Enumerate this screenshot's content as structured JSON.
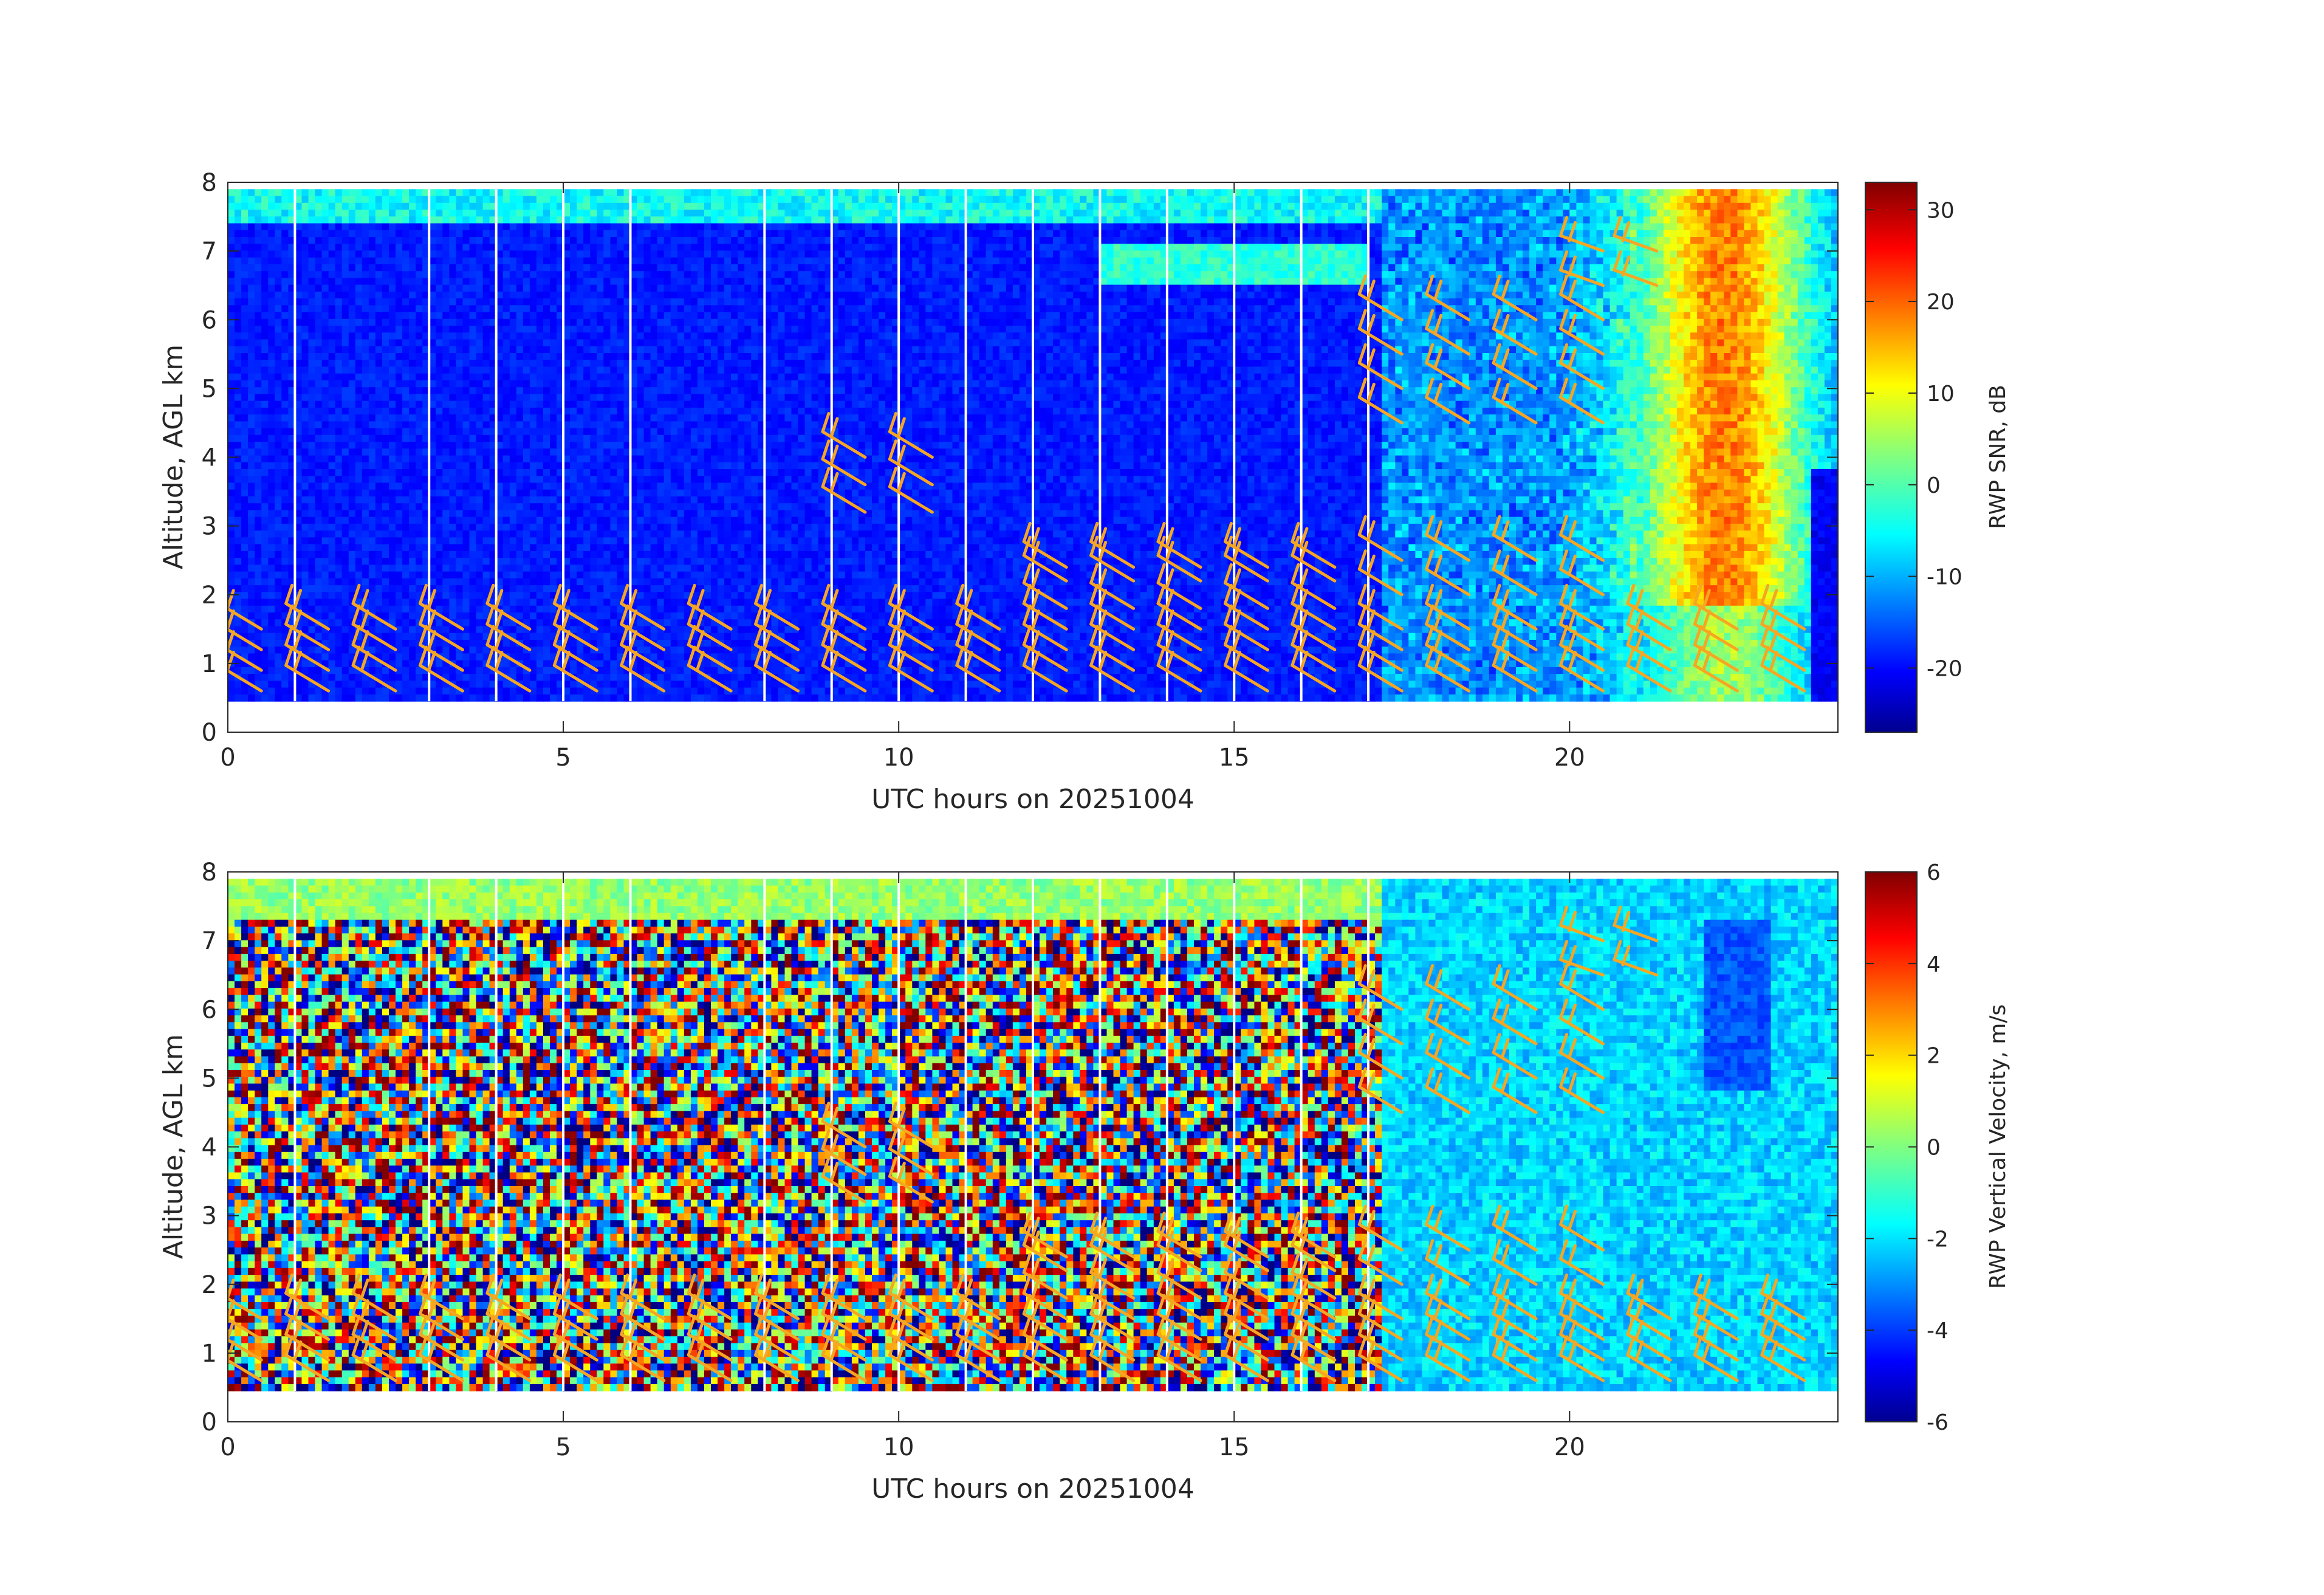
{
  "chart_data": [
    {
      "type": "heatmap",
      "title": "",
      "xlabel": "UTC hours on 20251004",
      "ylabel": "Altitude, AGL km",
      "xlim": [
        0,
        24
      ],
      "ylim": [
        0,
        8
      ],
      "xticks": [
        0,
        5,
        10,
        15,
        20
      ],
      "yticks": [
        0,
        1,
        2,
        3,
        4,
        5,
        6,
        7,
        8
      ],
      "colorbar": {
        "label": "RWP SNR, dB",
        "range": [
          -27,
          33
        ],
        "ticks": [
          -20,
          -10,
          0,
          10,
          20,
          30
        ],
        "colormap": "jet"
      },
      "wind_barb_color": "#f5a623",
      "data_gaps_utc_hours": [
        1,
        3,
        4,
        5,
        6,
        8,
        9,
        10,
        11,
        12,
        13,
        14,
        15,
        16,
        17
      ],
      "features": {
        "boundary_layer_top_km": 0.9,
        "cloud_echo_hours": [
          17.2,
          24.0
        ],
        "max_snr_db": 30
      }
    },
    {
      "type": "heatmap",
      "title": "",
      "xlabel": "UTC hours on 20251004",
      "ylabel": "Altitude, AGL km",
      "xlim": [
        0,
        24
      ],
      "ylim": [
        0,
        8
      ],
      "xticks": [
        0,
        5,
        10,
        15,
        20
      ],
      "yticks": [
        0,
        1,
        2,
        3,
        4,
        5,
        6,
        7,
        8
      ],
      "colorbar": {
        "label": "RWP Vertical Velocity, m/s",
        "range": [
          -6,
          6
        ],
        "ticks": [
          -6,
          -4,
          -2,
          0,
          2,
          4,
          6
        ],
        "colormap": "jet"
      },
      "wind_barb_color": "#f5a623",
      "data_gaps_utc_hours": [
        1,
        3,
        4,
        5,
        6,
        8,
        9,
        10,
        11,
        12,
        13,
        14,
        15,
        16,
        17
      ],
      "features": {
        "boundary_layer_top_km": 1.0,
        "cloud_echo_hours": [
          17.2,
          24.0
        ],
        "precip_fall_speed_ms": -2
      }
    }
  ],
  "wind_barbs": {
    "hours": [
      0,
      1,
      2,
      3,
      4,
      5,
      6,
      7,
      8,
      9,
      10,
      11,
      12,
      13,
      14,
      15,
      16,
      17,
      18,
      19,
      20,
      21,
      22,
      23
    ],
    "low_levels_km": [
      0.6,
      0.9,
      1.2,
      1.5
    ],
    "mid_levels_km": [
      3.2,
      3.6,
      4.0
    ],
    "upper_levels_km": [
      4.5,
      5.0,
      5.5,
      6.0,
      6.5,
      7.0
    ]
  }
}
